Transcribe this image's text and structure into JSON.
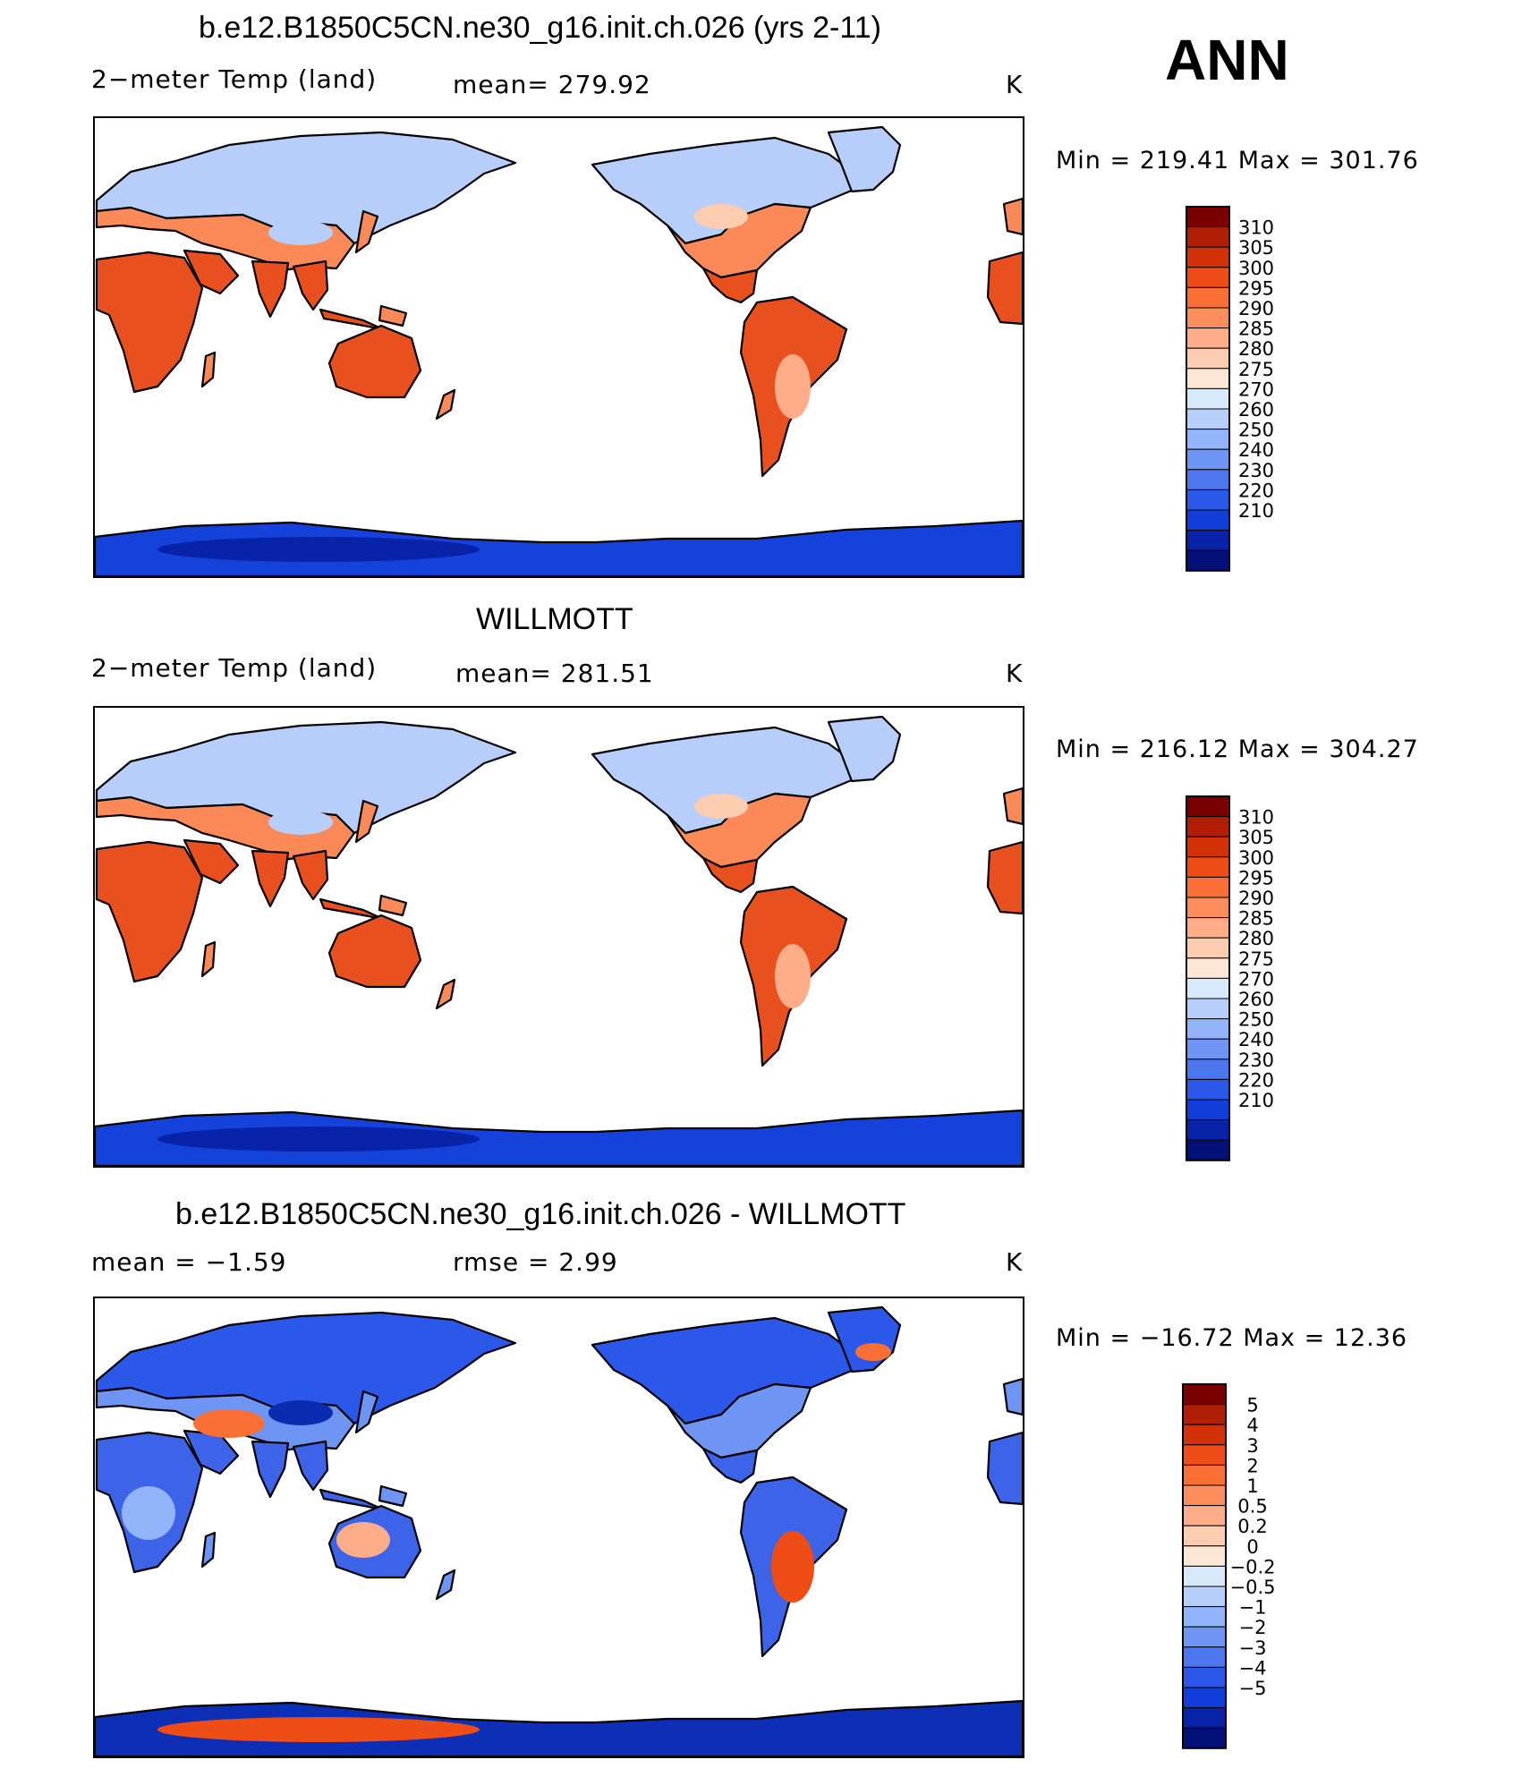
{
  "header": {
    "ann_label": "ANN"
  },
  "panels": [
    {
      "title": "b.e12.B1850C5CN.ne30_g16.init.ch.026 (yrs 2-11)",
      "variable": "2−meter Temp (land)",
      "stat_text": "mean=  279.92",
      "units": "K",
      "minmax_text": "Min  =  219.41  Max  =  301.76",
      "kind": "temperature"
    },
    {
      "title": "WILLMOTT",
      "variable": "2−meter Temp (land)",
      "stat_text": "mean=  281.51",
      "units": "K",
      "minmax_text": "Min  =  216.12  Max  =  304.27",
      "kind": "temperature"
    },
    {
      "title": "b.e12.B1850C5CN.ne30_g16.init.ch.026 - WILLMOTT",
      "variable": "mean =    −1.59",
      "stat_text": "rmse =     2.99",
      "units": "K",
      "minmax_text": "Min  =  −16.72  Max  =    12.36",
      "kind": "difference"
    }
  ],
  "colorbars": {
    "temperature": {
      "levels": [
        "310",
        "305",
        "300",
        "295",
        "290",
        "285",
        "280",
        "275",
        "270",
        "260",
        "250",
        "240",
        "230",
        "220",
        "210"
      ],
      "colors": [
        "#7a0000",
        "#b01e05",
        "#d33209",
        "#ee4d15",
        "#fa6f36",
        "#fc8d5d",
        "#fdae88",
        "#fdcdb2",
        "#fce7d6",
        "#d8e9fb",
        "#b7d0fb",
        "#93b4fa",
        "#6f95f4",
        "#4d77ef",
        "#2b58e8",
        "#113ed8",
        "#0823a8",
        "#04107a"
      ]
    },
    "difference": {
      "levels": [
        "5",
        "4",
        "3",
        "2",
        "1",
        "0.5",
        "0.2",
        "0",
        "−0.2",
        "−0.5",
        "−1",
        "−2",
        "−3",
        "−4",
        "−5"
      ],
      "colors": [
        "#7a0000",
        "#b01e05",
        "#d33209",
        "#ee4d15",
        "#fa6f36",
        "#fc8d5d",
        "#fdae88",
        "#fdcdb2",
        "#fce7d6",
        "#d8e9fb",
        "#b7d0fb",
        "#93b4fa",
        "#6f95f4",
        "#4d77ef",
        "#2b58e8",
        "#113ed8",
        "#0823a8",
        "#04107a"
      ]
    }
  },
  "colors": {
    "hot": "#e8501f",
    "warm": "#fb8a58",
    "cool": "#b7cdfa",
    "cold": "#4a73ee",
    "antarctic": "#1442da",
    "coast": "#000000"
  }
}
